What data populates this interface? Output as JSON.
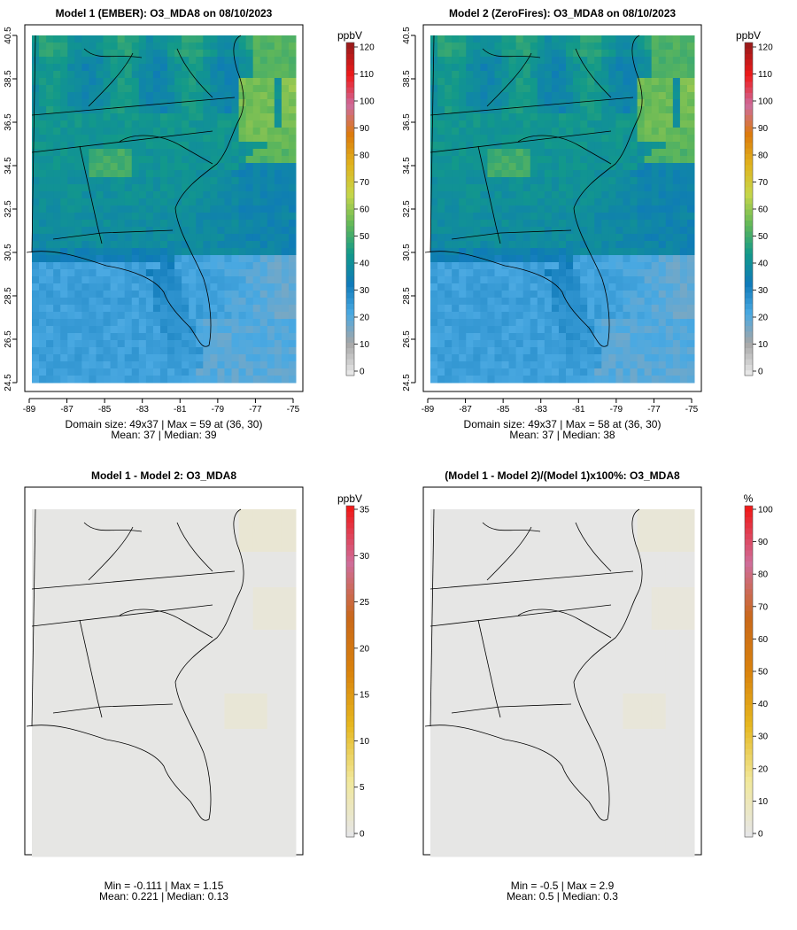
{
  "panels": [
    {
      "title": "Model 1 (EMBER): O3_MDA8 on 08/10/2023",
      "field": "m1",
      "caption_line1": "Domain size: 49x37 | Max = 59 at (36, 30)",
      "caption_line2": "Mean: 37 |  Median: 39",
      "show_axes": true
    },
    {
      "title": "Model 2 (ZeroFires): O3_MDA8 on 08/10/2023",
      "field": "m2",
      "caption_line1": "Domain size: 49x37 | Max = 58 at (36, 30)",
      "caption_line2": "Mean: 37 |  Median: 38",
      "show_axes": true
    },
    {
      "title": "Model 1 - Model 2: O3_MDA8",
      "field": "diff",
      "caption_line1": "Min = -0.111 | Max = 1.15",
      "caption_line2": "Mean: 0.221 |  Median: 0.13",
      "show_axes": false
    },
    {
      "title": "(Model 1 - Model 2)/(Model 1)x100%: O3_MDA8",
      "field": "pct",
      "caption_line1": "Min = -0.5 | Max = 2.9",
      "caption_line2": "Mean: 0.5 |  Median: 0.3",
      "show_axes": false
    }
  ],
  "x_tick_labels": [
    "-89",
    "-87",
    "-85",
    "-83",
    "-81",
    "-79",
    "-77",
    "-75"
  ],
  "y_tick_labels": [
    "24.5",
    "26.5",
    "28.5",
    "30.5",
    "32.5",
    "34.5",
    "36.5",
    "38.5",
    "40.5"
  ],
  "colorbars": [
    {
      "unit": "ppbV",
      "ticks": [
        "0",
        "10",
        "20",
        "30",
        "40",
        "50",
        "60",
        "70",
        "80",
        "90",
        "100",
        "110",
        "120"
      ]
    },
    {
      "unit": "ppbV",
      "ticks": [
        "0",
        "10",
        "20",
        "30",
        "40",
        "50",
        "60",
        "70",
        "80",
        "90",
        "100",
        "110",
        "120"
      ]
    },
    {
      "unit": "ppbV",
      "ticks": [
        "0",
        "5",
        "10",
        "15",
        "20",
        "25",
        "30",
        "35"
      ]
    },
    {
      "unit": "%",
      "ticks": [
        "0",
        "10",
        "20",
        "30",
        "40",
        "50",
        "60",
        "70",
        "80",
        "90",
        "100"
      ]
    }
  ],
  "chart_data": [
    {
      "type": "heatmap",
      "title": "Model 1 (EMBER): O3_MDA8 on 08/10/2023",
      "variable": "O3_MDA8",
      "units": "ppbV",
      "xlim": [
        -89,
        -75
      ],
      "ylim": [
        24.5,
        40.5
      ],
      "color_range": [
        0,
        120
      ],
      "domain_size": "49x37",
      "max": 59,
      "max_at": [
        36,
        30
      ],
      "mean": 37,
      "median": 39,
      "colors": [
        "#e6e6e6",
        "#a6a6a6",
        "#4aa9e2",
        "#0f7ab9",
        "#12998a",
        "#63b858",
        "#c6d64a",
        "#e0b31e",
        "#dc7b0c",
        "#cd6b9d",
        "#ef1a1a",
        "#9c1a1a"
      ]
    },
    {
      "type": "heatmap",
      "title": "Model 2 (ZeroFires): O3_MDA8 on 08/10/2023",
      "variable": "O3_MDA8",
      "units": "ppbV",
      "xlim": [
        -89,
        -75
      ],
      "ylim": [
        24.5,
        40.5
      ],
      "color_range": [
        0,
        120
      ],
      "domain_size": "49x37",
      "max": 58,
      "max_at": [
        36,
        30
      ],
      "mean": 37,
      "median": 38
    },
    {
      "type": "heatmap",
      "title": "Model 1 - Model 2: O3_MDA8",
      "units": "ppbV",
      "color_range": [
        0,
        35
      ],
      "min": -0.111,
      "max": 1.15,
      "mean": 0.221,
      "median": 0.13,
      "colors": [
        "#e6e6e6",
        "#f1e89a",
        "#e6b820",
        "#d9820c",
        "#c9681a",
        "#cf6d9a",
        "#ef1a1a"
      ]
    },
    {
      "type": "heatmap",
      "title": "(Model 1 - Model 2)/(Model 1)x100%: O3_MDA8",
      "units": "%",
      "color_range": [
        0,
        100
      ],
      "min": -0.5,
      "max": 2.9,
      "mean": 0.5,
      "median": 0.3,
      "colors": [
        "#e6e6e6",
        "#f1e89a",
        "#e6b820",
        "#d9820c",
        "#c9681a",
        "#cf6d9a",
        "#ef1a1a"
      ]
    }
  ]
}
